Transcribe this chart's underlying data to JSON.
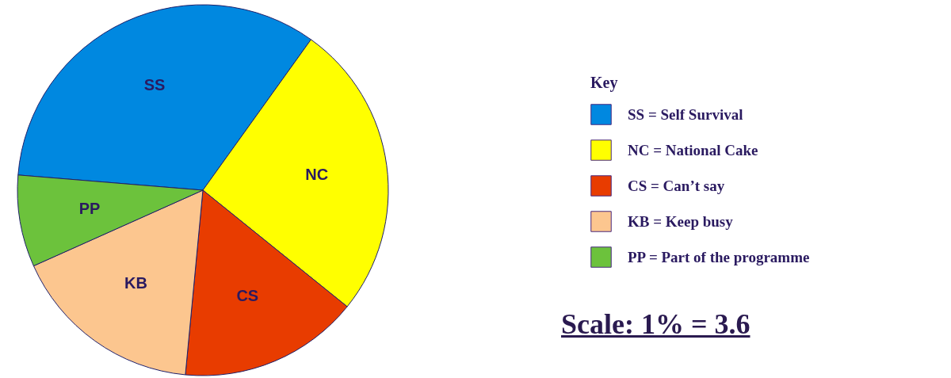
{
  "chart_data": {
    "type": "pie",
    "categories": [
      "SS = Self Survival",
      "NC = National Cake",
      "CS = Can’t say",
      "KB = Keep busy",
      "PP = Part of the programme"
    ],
    "values": [
      33.6,
      25.9,
      15.7,
      16.8,
      8.0
    ],
    "colors": [
      "#0088e0",
      "#ffff00",
      "#e83c00",
      "#fcc68f",
      "#6cc23c"
    ],
    "legend_title": "Key",
    "legend": "right",
    "annotations": [
      {
        "text": "SS",
        "x": "SS = Self Survival"
      },
      {
        "text": "NC",
        "x": "NC = National Cake"
      },
      {
        "text": "CS",
        "x": "CS = Can’t say"
      },
      {
        "text": "KB",
        "x": "KB = Keep busy"
      },
      {
        "text": "PP",
        "x": "PP = Part of the programme"
      },
      "Scale: 1% = 3.6"
    ]
  }
}
